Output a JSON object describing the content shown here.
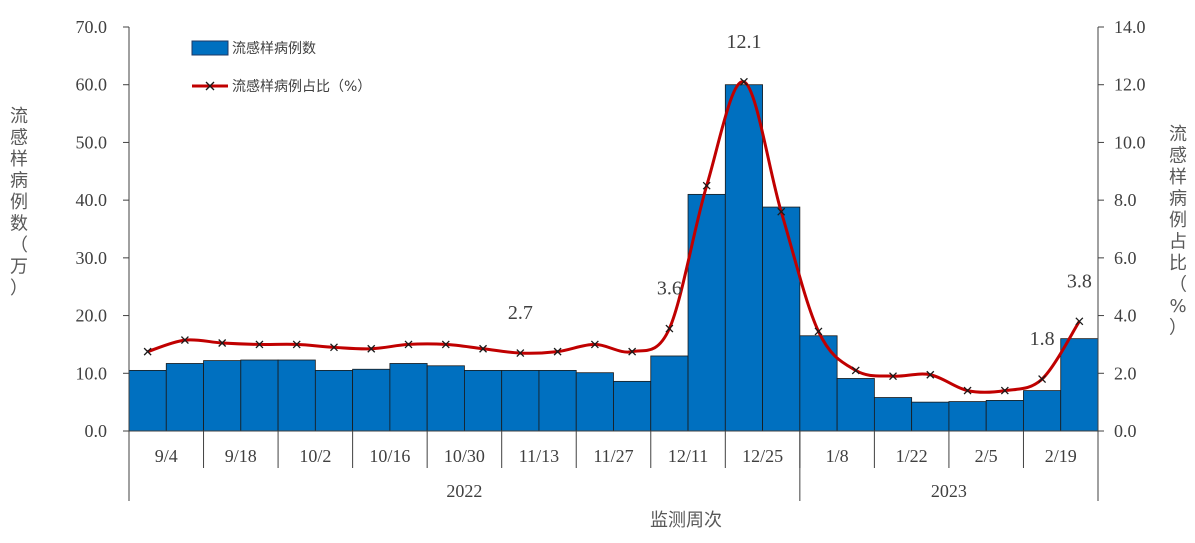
{
  "chart_data": {
    "type": "bar",
    "title": "",
    "xlabel": "监测周次",
    "ylabel_left": "流感样病例数（万）",
    "ylabel_right": "流感样病例占比（%）",
    "ylim_left": [
      0,
      70
    ],
    "ylim_right": [
      0,
      14
    ],
    "y_ticks_left": [
      "0.0",
      "10.0",
      "20.0",
      "30.0",
      "40.0",
      "50.0",
      "60.0",
      "70.0"
    ],
    "y_ticks_right": [
      "0.0",
      "2.0",
      "4.0",
      "6.0",
      "8.0",
      "10.0",
      "12.0",
      "14.0"
    ],
    "categories": [
      "9/4",
      "9/11",
      "9/18",
      "9/25",
      "10/2",
      "10/9",
      "10/16",
      "10/23",
      "10/30",
      "11/6",
      "11/13",
      "11/20",
      "11/27",
      "12/4",
      "12/11",
      "12/18",
      "12/25",
      "1/1",
      "1/8",
      "1/15",
      "1/22",
      "1/29",
      "2/5",
      "2/12",
      "2/19",
      "2/26"
    ],
    "category_labels": [
      "9/4",
      "",
      "9/18",
      "",
      "10/2",
      "",
      "10/16",
      "",
      "10/30",
      "",
      "11/13",
      "",
      "11/27",
      "",
      "12/11",
      "",
      "12/25",
      "",
      "1/8",
      "",
      "1/22",
      "",
      "2/5",
      "",
      "2/19",
      ""
    ],
    "year_groups": [
      {
        "label": "2022",
        "start": 0,
        "end": 17
      },
      {
        "label": "2023",
        "start": 18,
        "end": 25
      }
    ],
    "series": [
      {
        "name": "流感样病例数",
        "type": "bar",
        "axis": "left",
        "color": "#0070C0",
        "values": [
          10.5,
          11.7,
          12.2,
          12.3,
          12.3,
          10.5,
          10.7,
          11.7,
          11.3,
          10.5,
          10.5,
          10.5,
          10.1,
          8.6,
          13.0,
          41.0,
          60.0,
          38.8,
          16.5,
          9.1,
          5.8,
          5.0,
          5.1,
          5.3,
          7.0,
          16.0
        ]
      },
      {
        "name": "流感样病例占比（%）",
        "type": "line",
        "axis": "right",
        "color": "#C00000",
        "marker": "x",
        "values": [
          2.75,
          3.15,
          3.05,
          3.0,
          3.0,
          2.9,
          2.85,
          3.0,
          3.0,
          2.85,
          2.7,
          2.75,
          3.0,
          2.75,
          3.55,
          8.5,
          12.1,
          7.6,
          3.45,
          2.1,
          1.9,
          1.95,
          1.4,
          1.4,
          1.8,
          3.8
        ]
      }
    ],
    "annotations": [
      {
        "index": 10,
        "text": "2.7"
      },
      {
        "index": 14,
        "text": "3.6"
      },
      {
        "index": 16,
        "text": "12.1"
      },
      {
        "index": 24,
        "text": "1.8"
      },
      {
        "index": 25,
        "text": "3.8"
      }
    ],
    "legend_position": "top-left",
    "grid": false
  }
}
